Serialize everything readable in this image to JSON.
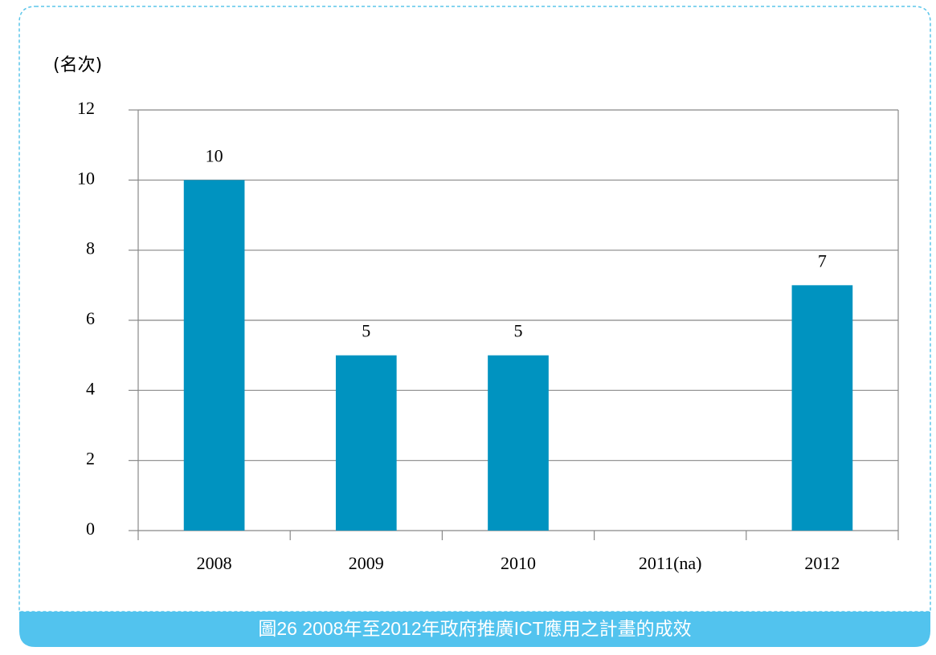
{
  "chart_data": {
    "type": "bar",
    "y_axis_label": "(名次)",
    "caption": "圖26 2008年至2012年政府推廣ICT應用之計畫的成效",
    "categories": [
      "2008",
      "2009",
      "2010",
      "2011(na)",
      "2012"
    ],
    "values": [
      10,
      5,
      5,
      null,
      7
    ],
    "color": "#0093c0",
    "ylim": [
      0,
      12
    ],
    "yticks": [
      0,
      2,
      4,
      6,
      8,
      10,
      12
    ],
    "grid": true
  }
}
